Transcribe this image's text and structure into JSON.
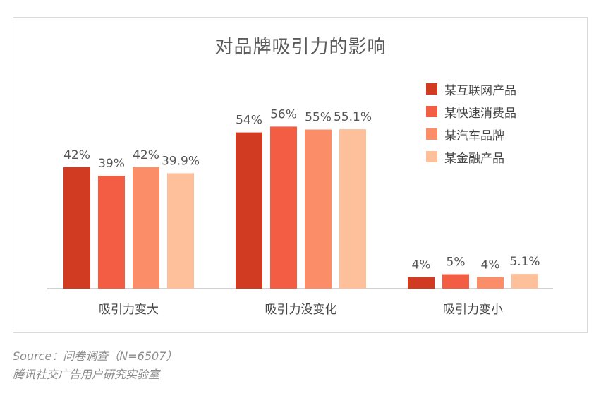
{
  "chart_data": {
    "type": "bar",
    "title": "对品牌吸引力的影响",
    "categories": [
      "吸引力变大",
      "吸引力没变化",
      "吸引力变小"
    ],
    "series": [
      {
        "name": "某互联网产品",
        "color": "#d13b22",
        "values": [
          42,
          54,
          4
        ],
        "labels": [
          "42%",
          "54%",
          "4%"
        ]
      },
      {
        "name": "某快速消费品",
        "color": "#f25d43",
        "values": [
          39,
          56,
          5
        ],
        "labels": [
          "39%",
          "56%",
          "5%"
        ]
      },
      {
        "name": "某汽车品牌",
        "color": "#fb8e68",
        "values": [
          42,
          55,
          4
        ],
        "labels": [
          "42%",
          "55%",
          "4%"
        ]
      },
      {
        "name": "某金融产品",
        "color": "#fdc09a",
        "values": [
          39.9,
          55.1,
          5.1
        ],
        "labels": [
          "39.9%",
          "55.1%",
          "5.1%"
        ]
      }
    ],
    "ylim": [
      0,
      56
    ],
    "grid": false,
    "legend_position": "top-right"
  },
  "source": {
    "line1": "Source：问卷调查（N=6507）",
    "line2": "腾讯社交广告用户研究实验室"
  }
}
